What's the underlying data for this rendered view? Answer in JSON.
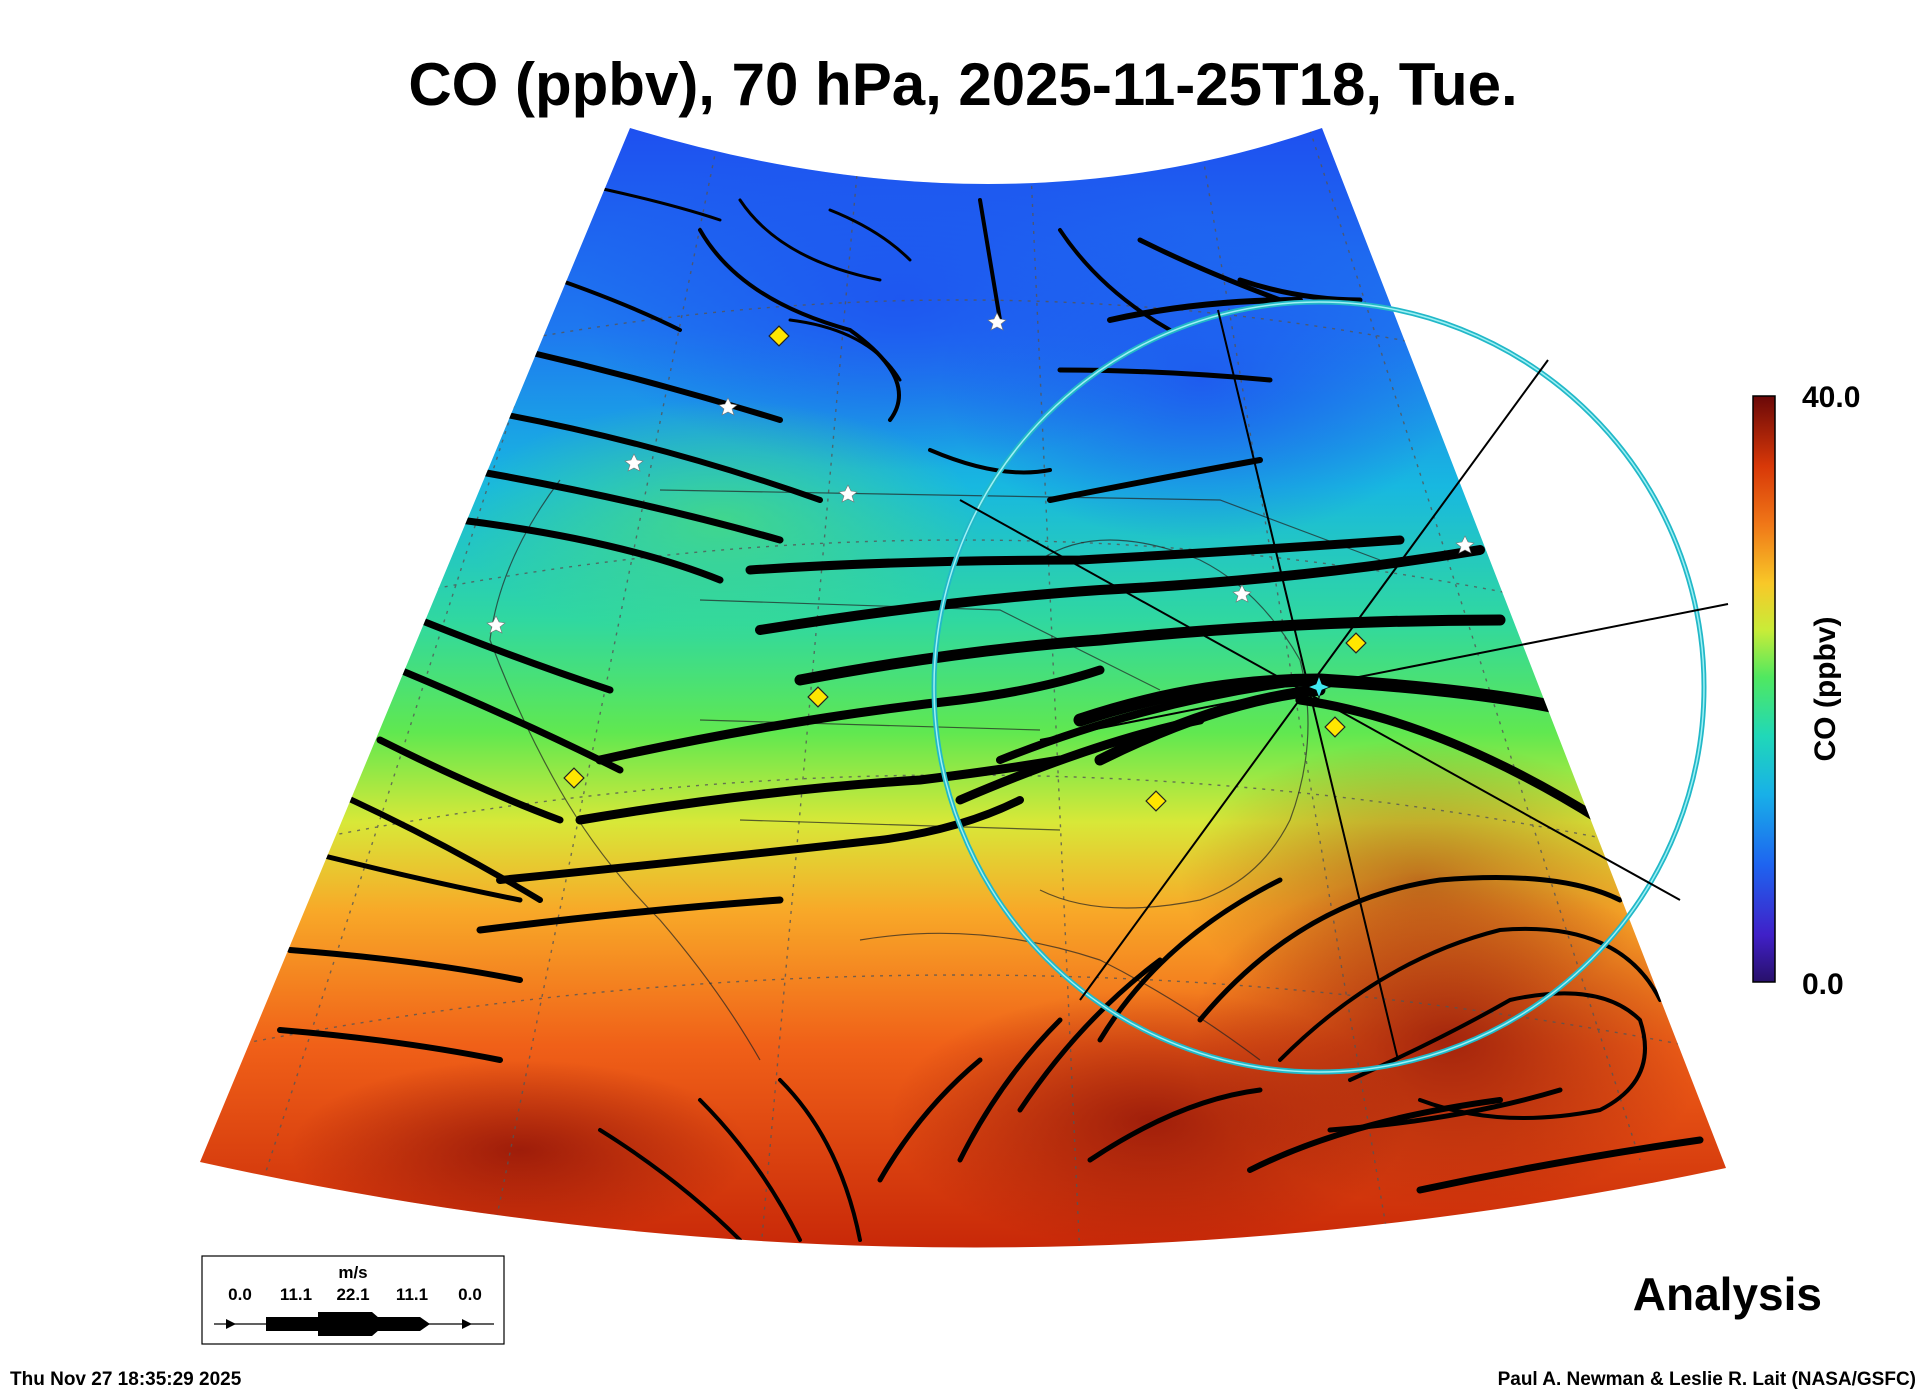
{
  "title": "CO (ppbv), 70 hPa, 2025-11-25T18, Tue.",
  "colorbar": {
    "label": "CO (ppbv)",
    "max_label": "40.0",
    "min_label": "0.0",
    "range": [
      0,
      40
    ]
  },
  "wind_legend": {
    "unit": "m/s",
    "ticks": [
      "0.0",
      "11.1",
      "22.1",
      "11.1",
      "0.0"
    ]
  },
  "analysis_label": "Analysis",
  "timestamp": "Thu Nov 27 18:35:29 2025",
  "credit": "Paul A. Newman & Leslie R. Lait (NASA/GSFC)",
  "colors": {
    "low": "#3a1aa8",
    "blue": "#1e64f0",
    "cyan": "#18c8d8",
    "green": "#40e060",
    "yellow": "#f0e030",
    "orange": "#f07018",
    "red": "#d83008",
    "dark_red": "#6a0808",
    "marker_circle": "#2ad8e0",
    "city_marker": "#ffe600"
  }
}
